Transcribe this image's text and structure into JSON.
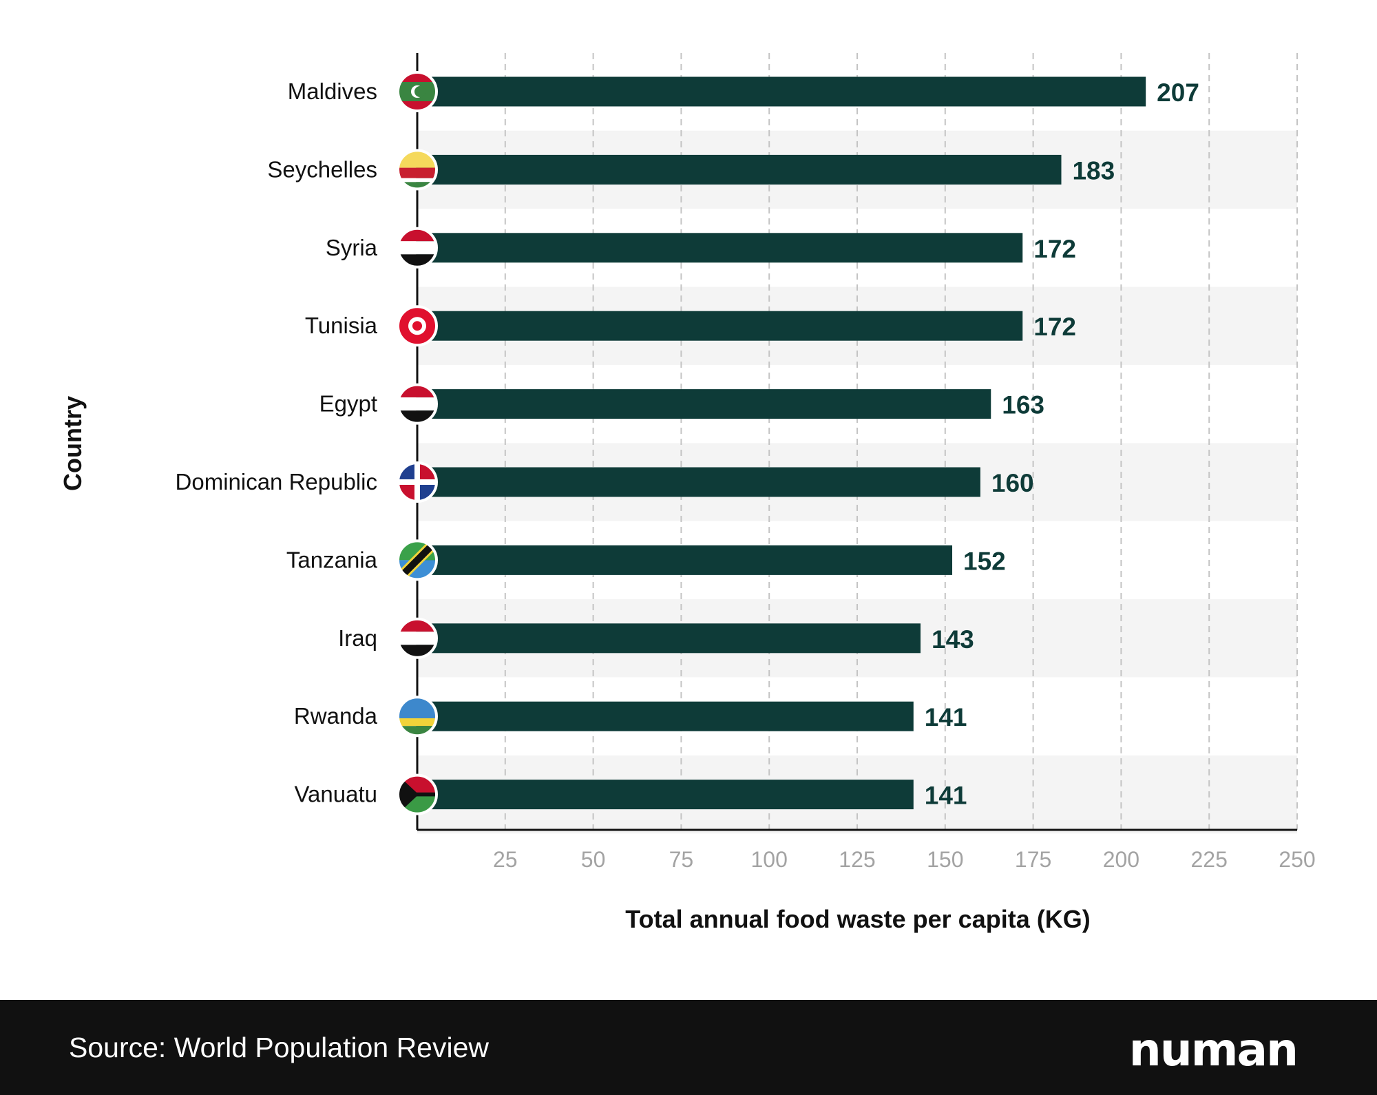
{
  "chart_data": {
    "type": "bar",
    "orientation": "horizontal",
    "title": "",
    "xlabel": "Total annual food waste per capita (KG)",
    "ylabel": "Country",
    "xlim": [
      0,
      250
    ],
    "xticks": [
      "25",
      "50",
      "75",
      "100",
      "125",
      "150",
      "175",
      "200",
      "225",
      "250"
    ],
    "grid": "vertical dashed",
    "categories": [
      "Maldives",
      "Seychelles",
      "Syria",
      "Tunisia",
      "Egypt",
      "Dominican Republic",
      "Tanzania",
      "Iraq",
      "Rwanda",
      "Vanuatu"
    ],
    "values": [
      207,
      183,
      172,
      172,
      163,
      160,
      152,
      143,
      141,
      141
    ],
    "flag_icons": [
      "maldives-flag-icon",
      "seychelles-flag-icon",
      "syria-flag-icon",
      "tunisia-flag-icon",
      "egypt-flag-icon",
      "dominican-republic-flag-icon",
      "tanzania-flag-icon",
      "iraq-flag-icon",
      "rwanda-flag-icon",
      "vanuatu-flag-icon"
    ],
    "bar_color": "#0e3b38"
  },
  "footer": {
    "source": "Source: World Population Review",
    "logo": "numan"
  }
}
